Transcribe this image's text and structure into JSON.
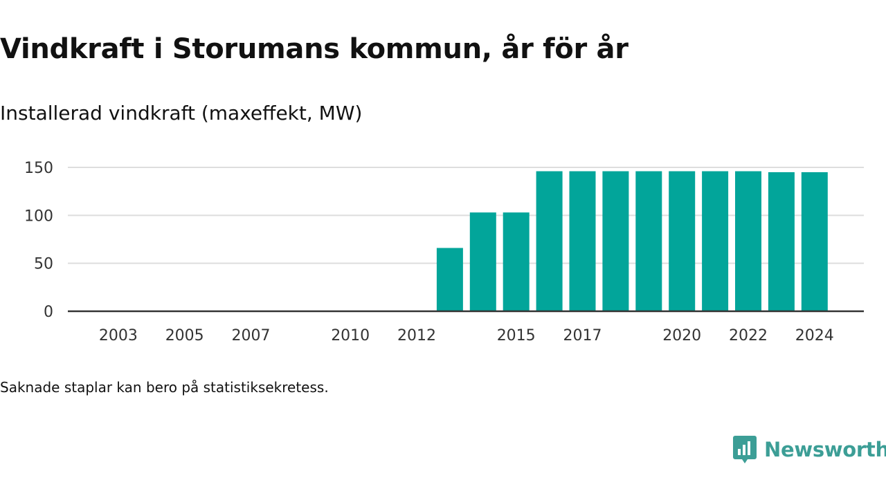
{
  "title": "Vindkraft i Storumans kommun, år för år",
  "subtitle": "Installerad vindkraft (maxeffekt, MW)",
  "footnote": "Saknade staplar kan bero på statistiksekretess.",
  "brand": {
    "name": "Newsworthy",
    "color": "#3c9e96"
  },
  "colors": {
    "bar": "#02a59a",
    "grid": "#dddddd",
    "axis": "#333333"
  },
  "chart_data": {
    "type": "bar",
    "categories": [
      2002,
      2003,
      2004,
      2005,
      2006,
      2007,
      2008,
      2009,
      2010,
      2011,
      2012,
      2013,
      2014,
      2015,
      2016,
      2017,
      2018,
      2019,
      2020,
      2021,
      2022,
      2023,
      2024
    ],
    "values": [
      null,
      null,
      null,
      null,
      null,
      null,
      null,
      null,
      null,
      null,
      null,
      66,
      103,
      103,
      146,
      146,
      146,
      146,
      146,
      146,
      146,
      145,
      145
    ],
    "x_tick_labels": [
      "2003",
      "2005",
      "2007",
      "2010",
      "2012",
      "2015",
      "2017",
      "2020",
      "2022",
      "2024"
    ],
    "y_ticks": [
      0,
      50,
      100,
      150
    ],
    "ylim": [
      0,
      150
    ],
    "grid": true,
    "title": "Vindkraft i Storumans kommun, år för år",
    "ylabel": "Installerad vindkraft (maxeffekt, MW)",
    "xlabel": ""
  }
}
